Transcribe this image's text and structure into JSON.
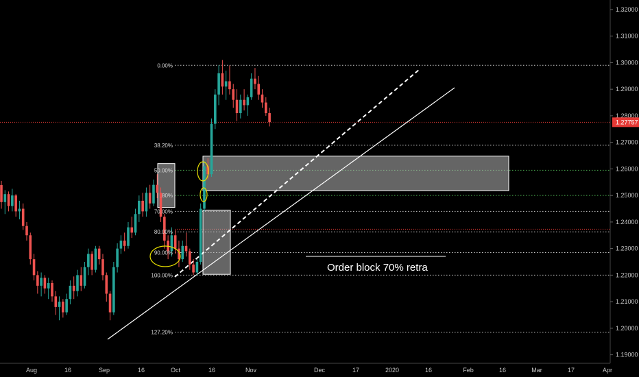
{
  "chart_data": {
    "type": "candlestick",
    "y_axis": {
      "range": [
        1.1868,
        1.3236
      ],
      "ticks": [
        "1.32000",
        "1.31000",
        "1.30000",
        "1.29000",
        "1.28000",
        "1.27000",
        "1.26000",
        "1.25000",
        "1.24000",
        "1.23000",
        "1.22000",
        "1.21000",
        "1.20000",
        "1.19000"
      ],
      "position": "right"
    },
    "x_axis": {
      "ticks": [
        "Aug",
        "16",
        "Sep",
        "16",
        "Oct",
        "16",
        "Nov",
        "Dec",
        "17",
        "2020",
        "16",
        "Feb",
        "16",
        "Mar",
        "17",
        "Apr"
      ]
    },
    "current_price": "1.27757",
    "fib_levels": [
      {
        "label": "0.00%",
        "value": 1.299
      },
      {
        "label": "38.20%",
        "value": 1.2689
      },
      {
        "label": "50.00%",
        "value": 1.2595
      },
      {
        "label": ".80%",
        "value": 1.25
      },
      {
        "label": "70.00%",
        "value": 1.244
      },
      {
        "label": "80.00%",
        "value": 1.2363
      },
      {
        "label": "90.00%",
        "value": 1.2285
      },
      {
        "label": "100.00%",
        "value": 1.22
      },
      {
        "label": "127.20%",
        "value": 1.1985
      }
    ],
    "annotation": "Order block 70% retra",
    "colors": {
      "background": "#000000",
      "bull": "#26a69a",
      "bear": "#ef5350",
      "fib_line": "#c8c8c8",
      "green_line": "#4caf50",
      "red_line": "#e53935",
      "zone": "#b8b8b8",
      "circle": "#e8e000"
    },
    "candles": [
      [
        1.2539,
        1.2555,
        1.245,
        1.2475
      ],
      [
        1.2475,
        1.252,
        1.243,
        1.2505
      ],
      [
        1.2505,
        1.2515,
        1.244,
        1.246
      ],
      [
        1.246,
        1.2525,
        1.244,
        1.25
      ],
      [
        1.25,
        1.2505,
        1.242,
        1.244
      ],
      [
        1.244,
        1.248,
        1.241,
        1.245
      ],
      [
        1.245,
        1.247,
        1.237,
        1.2385
      ],
      [
        1.2385,
        1.24,
        1.233,
        1.235
      ],
      [
        1.235,
        1.236,
        1.224,
        1.226
      ],
      [
        1.226,
        1.228,
        1.218,
        1.22
      ],
      [
        1.22,
        1.2215,
        1.213,
        1.216
      ],
      [
        1.216,
        1.221,
        1.212,
        1.219
      ],
      [
        1.219,
        1.22,
        1.213,
        1.215
      ],
      [
        1.215,
        1.219,
        1.211,
        1.217
      ],
      [
        1.217,
        1.218,
        1.21,
        1.212
      ],
      [
        1.212,
        1.214,
        1.205,
        1.208
      ],
      [
        1.208,
        1.212,
        1.203,
        1.21
      ],
      [
        1.21,
        1.211,
        1.204,
        1.206
      ],
      [
        1.206,
        1.213,
        1.205,
        1.211
      ],
      [
        1.211,
        1.218,
        1.209,
        1.216
      ],
      [
        1.216,
        1.2195,
        1.211,
        1.214
      ],
      [
        1.214,
        1.222,
        1.212,
        1.22
      ],
      [
        1.22,
        1.223,
        1.214,
        1.216
      ],
      [
        1.216,
        1.225,
        1.215,
        1.223
      ],
      [
        1.223,
        1.23,
        1.22,
        1.228
      ],
      [
        1.228,
        1.229,
        1.22,
        1.222
      ],
      [
        1.222,
        1.231,
        1.221,
        1.23
      ],
      [
        1.23,
        1.231,
        1.224,
        1.226
      ],
      [
        1.226,
        1.228,
        1.218,
        1.22
      ],
      [
        1.22,
        1.221,
        1.21,
        1.213
      ],
      [
        1.213,
        1.214,
        1.203,
        1.206
      ],
      [
        1.206,
        1.225,
        1.205,
        1.223
      ],
      [
        1.223,
        1.232,
        1.221,
        1.23
      ],
      [
        1.23,
        1.235,
        1.228,
        1.233
      ],
      [
        1.233,
        1.236,
        1.229,
        1.231
      ],
      [
        1.231,
        1.24,
        1.23,
        1.238
      ],
      [
        1.238,
        1.242,
        1.234,
        1.236
      ],
      [
        1.236,
        1.245,
        1.235,
        1.243
      ],
      [
        1.243,
        1.25,
        1.24,
        1.248
      ],
      [
        1.248,
        1.251,
        1.242,
        1.244
      ],
      [
        1.244,
        1.253,
        1.242,
        1.251
      ],
      [
        1.251,
        1.254,
        1.245,
        1.247
      ],
      [
        1.247,
        1.256,
        1.246,
        1.254
      ],
      [
        1.254,
        1.258,
        1.249,
        1.251
      ],
      [
        1.251,
        1.253,
        1.24,
        1.242
      ],
      [
        1.242,
        1.243,
        1.23,
        1.233
      ],
      [
        1.233,
        1.235,
        1.226,
        1.229
      ],
      [
        1.229,
        1.238,
        1.227,
        1.235
      ],
      [
        1.235,
        1.237,
        1.228,
        1.23
      ],
      [
        1.23,
        1.233,
        1.223,
        1.226
      ],
      [
        1.226,
        1.233,
        1.225,
        1.231
      ],
      [
        1.231,
        1.236,
        1.227,
        1.229
      ],
      [
        1.229,
        1.23,
        1.222,
        1.224
      ],
      [
        1.224,
        1.226,
        1.22,
        1.221
      ],
      [
        1.221,
        1.226,
        1.22,
        1.225
      ],
      [
        1.225,
        1.247,
        1.224,
        1.245
      ],
      [
        1.245,
        1.263,
        1.244,
        1.261
      ],
      [
        1.261,
        1.264,
        1.256,
        1.258
      ],
      [
        1.258,
        1.279,
        1.257,
        1.277
      ],
      [
        1.277,
        1.29,
        1.275,
        1.288
      ],
      [
        1.288,
        1.299,
        1.284,
        1.296
      ],
      [
        1.296,
        1.301,
        1.288,
        1.291
      ],
      [
        1.291,
        1.297,
        1.286,
        1.293
      ],
      [
        1.293,
        1.299,
        1.288,
        1.29
      ],
      [
        1.29,
        1.292,
        1.283,
        1.286
      ],
      [
        1.286,
        1.29,
        1.278,
        1.281
      ],
      [
        1.281,
        1.288,
        1.279,
        1.286
      ],
      [
        1.286,
        1.29,
        1.282,
        1.284
      ],
      [
        1.284,
        1.288,
        1.28,
        1.287
      ],
      [
        1.287,
        1.296,
        1.286,
        1.294
      ],
      [
        1.294,
        1.298,
        1.29,
        1.292
      ],
      [
        1.292,
        1.295,
        1.286,
        1.288
      ],
      [
        1.288,
        1.29,
        1.283,
        1.285
      ],
      [
        1.285,
        1.287,
        1.28,
        1.281
      ],
      [
        1.281,
        1.283,
        1.276,
        1.2776
      ]
    ]
  }
}
